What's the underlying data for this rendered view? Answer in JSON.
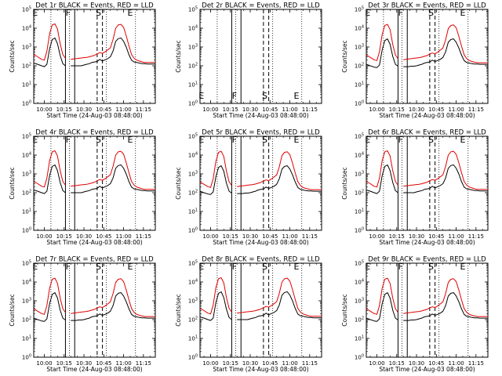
{
  "chart_data": {
    "type": "line",
    "layout": "3x3 grid",
    "xlabel": "Start Time (24-Aug-03 08:48:00)",
    "ylabel": "Counts/sec",
    "x_ticks": [
      "10:00",
      "10:15",
      "10:30",
      "10:45",
      "11:00",
      "11:15"
    ],
    "x_range": [
      "09:52",
      "11:24"
    ],
    "y_scale": "log",
    "y_ticks": [
      "10^0",
      "10^1",
      "10^2",
      "10^3",
      "10^4",
      "10^5"
    ],
    "ylim": [
      1,
      100000
    ],
    "dotted_lines": [
      "10:05",
      "10:19",
      "10:47",
      "11:09"
    ],
    "solid_lines": [
      "10:16",
      "10:23"
    ],
    "dashed_lines": [
      "10:40",
      "10:44"
    ],
    "markers": [
      {
        "letter": "E",
        "time": "09:53"
      },
      {
        "letter": "F",
        "time": "10:18"
      },
      {
        "letter": "S",
        "time": "10:41"
      },
      {
        "letter": "E",
        "time": "11:05"
      }
    ],
    "series": [
      {
        "name": "Events",
        "color": "#000000"
      },
      {
        "name": "LLD",
        "color": "#e00000"
      }
    ],
    "x_sample": [
      "09:52",
      "09:55",
      "09:58",
      "10:00",
      "10:02",
      "10:04",
      "10:06",
      "10:08",
      "10:10",
      "10:12",
      "10:14",
      "10:16",
      "10:18",
      "10:20",
      "10:22",
      "10:24",
      "10:26",
      "10:28",
      "10:30",
      "10:32",
      "10:34",
      "10:36",
      "10:38",
      "10:40",
      "10:42",
      "10:44",
      "10:46",
      "10:48",
      "10:50",
      "10:52",
      "10:54",
      "10:56",
      "10:58",
      "11:00",
      "11:02",
      "11:04",
      "11:06",
      "11:08",
      "11:10",
      "11:12",
      "11:14",
      "11:16",
      "11:18",
      "11:20",
      "11:22",
      "11:24"
    ],
    "panels": [
      {
        "title": "Det 1r BLACK = Events, RED = LLD",
        "letter_markers": false,
        "events": [
          140,
          120,
          100,
          90,
          120,
          800,
          2500,
          3000,
          1500,
          350,
          130,
          100,
          "",
          100,
          100,
          100,
          100,
          100,
          110,
          120,
          130,
          150,
          160,
          170,
          220,
          180,
          210,
          240,
          300,
          600,
          2000,
          2800,
          3000,
          2000,
          1000,
          400,
          200,
          160,
          150,
          140,
          130,
          130,
          125,
          125,
          125,
          125
        ],
        "lld": [
          400,
          300,
          220,
          200,
          600,
          5000,
          15000,
          17000,
          9000,
          1500,
          400,
          250,
          "",
          220,
          230,
          240,
          250,
          260,
          270,
          280,
          300,
          330,
          360,
          430,
          500,
          460,
          550,
          700,
          900,
          2500,
          10000,
          15000,
          16000,
          11000,
          4000,
          1200,
          400,
          250,
          200,
          180,
          160,
          150,
          150,
          150,
          150,
          150
        ]
      },
      {
        "title": "Det 2r BLACK = Events, RED = LLD",
        "letter_markers": true,
        "events": [],
        "lld": []
      },
      {
        "title": "Det 3r BLACK = Events, RED = LLD",
        "letter_markers": false,
        "events": [
          120,
          100,
          85,
          80,
          110,
          700,
          2200,
          2700,
          1400,
          320,
          120,
          95,
          "",
          90,
          90,
          90,
          95,
          95,
          100,
          110,
          120,
          140,
          150,
          160,
          200,
          170,
          190,
          220,
          280,
          550,
          1800,
          2500,
          2700,
          1800,
          900,
          380,
          190,
          150,
          140,
          130,
          125,
          125,
          120,
          120,
          120,
          120
        ],
        "lld": [
          380,
          280,
          210,
          190,
          560,
          4600,
          14000,
          16000,
          8500,
          1400,
          380,
          240,
          "",
          210,
          220,
          230,
          240,
          250,
          260,
          270,
          290,
          320,
          350,
          420,
          480,
          440,
          530,
          680,
          880,
          2400,
          9500,
          14000,
          15000,
          10500,
          3800,
          1150,
          390,
          240,
          190,
          170,
          155,
          145,
          145,
          145,
          145,
          145
        ]
      },
      {
        "title": "Det 4r BLACK = Events, RED = LLD",
        "letter_markers": false,
        "events": [
          140,
          120,
          100,
          90,
          120,
          800,
          2500,
          3000,
          1500,
          350,
          130,
          100,
          "",
          100,
          100,
          100,
          100,
          100,
          110,
          120,
          130,
          150,
          160,
          170,
          220,
          180,
          210,
          240,
          300,
          600,
          2000,
          2800,
          3000,
          2000,
          1000,
          400,
          200,
          160,
          150,
          140,
          130,
          130,
          125,
          125,
          125,
          125
        ],
        "lld": [
          400,
          300,
          220,
          200,
          600,
          5000,
          15000,
          17000,
          9000,
          1500,
          400,
          250,
          "",
          220,
          230,
          240,
          250,
          260,
          270,
          280,
          300,
          330,
          360,
          430,
          500,
          460,
          550,
          700,
          900,
          2500,
          10000,
          15000,
          16000,
          11000,
          4000,
          1200,
          400,
          250,
          200,
          180,
          160,
          150,
          150,
          150,
          150,
          150
        ]
      },
      {
        "title": "Det 5r BLACK = Events, RED = LLD",
        "letter_markers": false,
        "events": [
          120,
          100,
          85,
          80,
          110,
          700,
          2200,
          2700,
          1400,
          320,
          120,
          95,
          "",
          90,
          90,
          90,
          95,
          95,
          100,
          110,
          120,
          140,
          150,
          160,
          200,
          170,
          190,
          220,
          280,
          550,
          1800,
          2500,
          2700,
          1800,
          900,
          380,
          190,
          150,
          140,
          130,
          125,
          125,
          120,
          120,
          120,
          120
        ],
        "lld": [
          380,
          280,
          210,
          190,
          560,
          4600,
          14000,
          16000,
          8500,
          1400,
          380,
          240,
          "",
          210,
          220,
          230,
          240,
          250,
          260,
          270,
          290,
          320,
          350,
          420,
          480,
          440,
          530,
          680,
          880,
          2400,
          9500,
          14000,
          15000,
          10500,
          3800,
          1150,
          390,
          240,
          190,
          170,
          155,
          145,
          145,
          145,
          145,
          145
        ]
      },
      {
        "title": "Det 6r BLACK = Events, RED = LLD",
        "letter_markers": false,
        "events": [
          140,
          120,
          100,
          90,
          120,
          800,
          2500,
          3000,
          1500,
          350,
          130,
          100,
          "",
          100,
          100,
          100,
          100,
          100,
          110,
          120,
          130,
          150,
          160,
          170,
          220,
          180,
          210,
          240,
          300,
          600,
          2000,
          2800,
          3000,
          2000,
          1000,
          400,
          200,
          160,
          150,
          140,
          130,
          130,
          125,
          125,
          125,
          125
        ],
        "lld": [
          400,
          300,
          220,
          200,
          600,
          5000,
          15000,
          17000,
          9000,
          1500,
          400,
          250,
          "",
          220,
          230,
          240,
          250,
          260,
          270,
          280,
          300,
          330,
          360,
          430,
          500,
          460,
          550,
          700,
          900,
          2500,
          10000,
          15000,
          16000,
          11000,
          4000,
          1200,
          400,
          250,
          200,
          180,
          160,
          150,
          150,
          150,
          150,
          150
        ]
      },
      {
        "title": "Det 7r BLACK = Events, RED = LLD",
        "letter_markers": false,
        "events": [
          120,
          100,
          85,
          80,
          110,
          700,
          2200,
          2700,
          1400,
          320,
          120,
          95,
          "",
          90,
          90,
          90,
          95,
          95,
          100,
          110,
          120,
          140,
          150,
          160,
          200,
          170,
          190,
          220,
          280,
          550,
          1800,
          2500,
          2700,
          1800,
          900,
          380,
          190,
          150,
          140,
          130,
          125,
          125,
          120,
          120,
          120,
          120
        ],
        "lld": [
          380,
          280,
          210,
          190,
          560,
          4600,
          14000,
          16000,
          8500,
          1400,
          380,
          240,
          "",
          210,
          220,
          230,
          240,
          250,
          260,
          270,
          290,
          320,
          350,
          420,
          480,
          440,
          530,
          680,
          880,
          2400,
          9500,
          14000,
          15000,
          10500,
          3800,
          1150,
          390,
          240,
          190,
          170,
          155,
          145,
          145,
          145,
          145,
          145
        ]
      },
      {
        "title": "Det 8r BLACK = Events, RED = LLD",
        "letter_markers": false,
        "events": [
          140,
          120,
          100,
          90,
          120,
          800,
          2500,
          3000,
          1500,
          350,
          130,
          100,
          "",
          100,
          100,
          100,
          100,
          100,
          110,
          120,
          130,
          150,
          160,
          170,
          220,
          180,
          210,
          240,
          300,
          600,
          2000,
          2800,
          3000,
          2000,
          1000,
          400,
          200,
          160,
          150,
          140,
          130,
          130,
          125,
          125,
          125,
          125
        ],
        "lld": [
          400,
          300,
          220,
          200,
          600,
          5000,
          15000,
          17000,
          9000,
          1500,
          400,
          250,
          "",
          220,
          230,
          240,
          250,
          260,
          270,
          280,
          300,
          330,
          360,
          430,
          500,
          460,
          550,
          700,
          900,
          2500,
          10000,
          15000,
          16000,
          11000,
          4000,
          1200,
          400,
          250,
          200,
          180,
          160,
          150,
          150,
          150,
          150,
          150
        ]
      },
      {
        "title": "Det 9r BLACK = Events, RED = LLD",
        "letter_markers": false,
        "events": [
          120,
          100,
          85,
          80,
          110,
          700,
          2200,
          2700,
          1400,
          320,
          120,
          95,
          "",
          90,
          90,
          90,
          95,
          95,
          100,
          110,
          120,
          140,
          150,
          160,
          200,
          170,
          190,
          220,
          280,
          550,
          1800,
          2500,
          2700,
          1800,
          900,
          380,
          190,
          150,
          140,
          130,
          125,
          125,
          120,
          120,
          120,
          120
        ],
        "lld": [
          380,
          280,
          210,
          190,
          560,
          4600,
          14000,
          16000,
          8500,
          1400,
          380,
          240,
          "",
          210,
          220,
          230,
          240,
          250,
          260,
          270,
          290,
          320,
          350,
          420,
          480,
          440,
          530,
          680,
          880,
          2400,
          9500,
          14000,
          15000,
          10500,
          3800,
          1150,
          390,
          240,
          190,
          170,
          155,
          145,
          145,
          145,
          145,
          145
        ]
      }
    ]
  }
}
